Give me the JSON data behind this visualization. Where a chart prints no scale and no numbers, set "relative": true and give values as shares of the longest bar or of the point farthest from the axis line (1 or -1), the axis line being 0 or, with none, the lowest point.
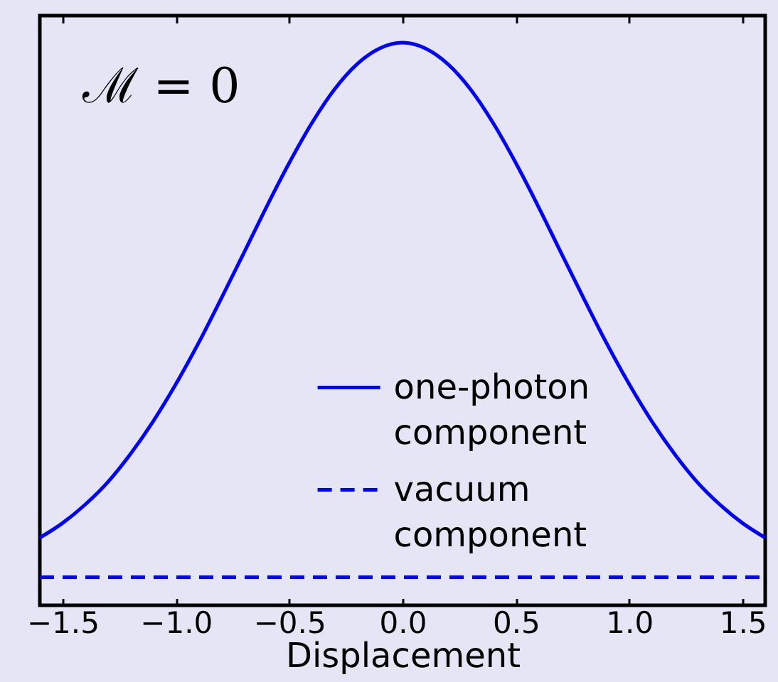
{
  "chart_data": {
    "type": "line",
    "relative": true,
    "xlabel": "Displacement",
    "annotations": [
      "ℳ = 0"
    ],
    "x": [
      -1.6,
      -1.5,
      -1.4,
      -1.3,
      -1.2,
      -1.1,
      -1.0,
      -0.9,
      -0.8,
      -0.7,
      -0.6,
      -0.5,
      -0.4,
      -0.3,
      -0.2,
      -0.1,
      0,
      0.1,
      0.2,
      0.3,
      0.4,
      0.5,
      0.6,
      0.7,
      0.8,
      0.9,
      1.0,
      1.1,
      1.2,
      1.3,
      1.4,
      1.5,
      1.6
    ],
    "series": [
      {
        "name": "one-photon component",
        "color": "#0000ff",
        "line_style": "solid",
        "values": [
          0.12,
          0.146,
          0.179,
          0.219,
          0.269,
          0.327,
          0.393,
          0.466,
          0.545,
          0.626,
          0.708,
          0.786,
          0.857,
          0.917,
          0.962,
          0.99,
          1,
          0.99,
          0.962,
          0.917,
          0.857,
          0.786,
          0.708,
          0.626,
          0.545,
          0.466,
          0.393,
          0.327,
          0.269,
          0.219,
          0.179,
          0.146,
          0.12
        ]
      },
      {
        "name": "vacuum component",
        "color": "#0000ff",
        "line_style": "dashed",
        "x": [
          -1.6,
          1.6
        ],
        "values": [
          0.05,
          0.05
        ]
      }
    ],
    "xlim": [
      -1.6,
      1.6
    ],
    "xticks": [
      {
        "value": -1.5,
        "label": "−1.5"
      },
      {
        "value": -1,
        "label": "−1.0"
      },
      {
        "value": -0.5,
        "label": "−0.5"
      },
      {
        "value": 0,
        "label": "0.0"
      },
      0.5,
      {
        "value": 1,
        "label": "1.0"
      },
      1.5
    ],
    "legend": "bottom right"
  }
}
